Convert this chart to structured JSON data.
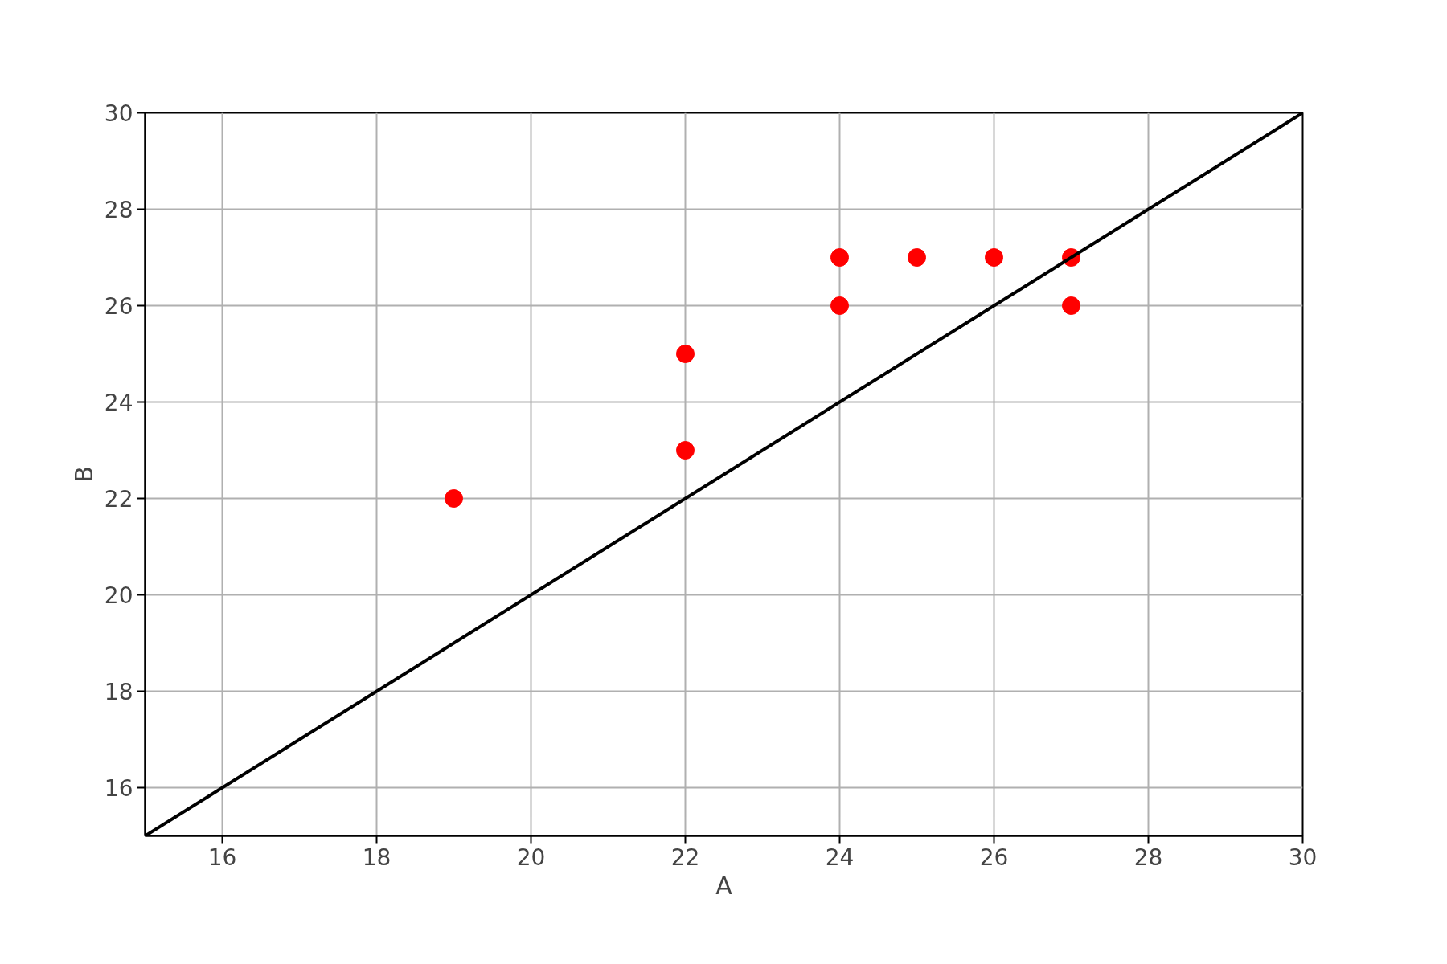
{
  "chart_data": {
    "type": "scatter",
    "xlabel": "A",
    "ylabel": "B",
    "xlim": [
      15,
      30
    ],
    "ylim": [
      15,
      30
    ],
    "xticks": [
      16,
      18,
      20,
      22,
      24,
      26,
      28,
      30
    ],
    "yticks": [
      16,
      18,
      20,
      22,
      24,
      26,
      28,
      30
    ],
    "grid": true,
    "series": [
      {
        "marker": "circle",
        "color": "#ff0000",
        "x": [
          19,
          22,
          22,
          24,
          24,
          25,
          26,
          27,
          27
        ],
        "values": [
          22,
          25,
          23,
          27,
          26,
          27,
          27,
          27,
          26
        ]
      },
      {
        "type": "line",
        "color": "#000000",
        "x": [
          15,
          30
        ],
        "values": [
          15,
          30
        ],
        "line_style": "solid"
      }
    ]
  }
}
